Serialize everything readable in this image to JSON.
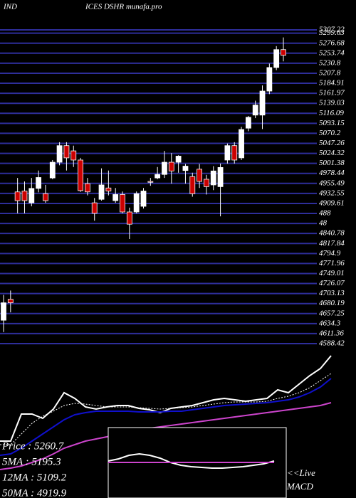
{
  "chart_data": {
    "type": "candlestick",
    "title_left": "IND",
    "title_right": "ICES DSHR munafa.pro",
    "up_color": "#ffffff",
    "down_color": "#cc0000",
    "grid": true,
    "grid_color": "#2e2e9a",
    "ylim": [
      4588.42,
      5307.22
    ],
    "yticks": [
      5307.22,
      5299.63,
      5276.68,
      5253.74,
      5230.8,
      {
        "value": 5207.8,
        "label": "5207.8"
      },
      5184.91,
      5161.97,
      5139.03,
      5116.09,
      5093.15,
      5070.2,
      5047.26,
      5024.32,
      5001.38,
      4978.44,
      4955.49,
      4932.55,
      4909.61,
      {
        "value": 4886.67,
        "label": "488"
      },
      {
        "value": 4863.73,
        "label": "48"
      },
      4840.78,
      4817.84,
      4794.9,
      4771.96,
      4749.01,
      4726.07,
      4703.13,
      4680.19,
      4657.25,
      4634.3,
      4611.36,
      4588.42
    ],
    "open": [
      4642,
      4690,
      4936,
      4938,
      4911,
      4944,
      4932,
      4968,
      5004,
      5042,
      5030,
      5009,
      4955,
      4911,
      4919,
      4945,
      4916,
      4930,
      4890,
      4890,
      4903,
      4960,
      4968,
      4976,
      5004,
      5004,
      4985,
      4971,
      4988,
      4965,
      4952,
      4948,
      5009,
      5042,
      5014,
      5082,
      5112,
      5112,
      5167,
      5221,
      5262
    ],
    "high": [
      4700,
      4710,
      4968,
      4960,
      4968,
      4985,
      4952,
      5009,
      5050,
      5050,
      5042,
      5014,
      4968,
      4922,
      4990,
      4985,
      4945,
      4937,
      4900,
      4937,
      4945,
      4968,
      4993,
      5030,
      5025,
      5020,
      5000,
      4980,
      5000,
      4975,
      4995,
      5001,
      5047,
      5050,
      5085,
      5110,
      5145,
      5180,
      5230,
      5270,
      5290
    ],
    "low": [
      4615,
      4660,
      4887,
      4887,
      4903,
      4935,
      4911,
      4965,
      4997,
      4985,
      4993,
      4936,
      4928,
      4870,
      4916,
      4928,
      4911,
      4887,
      4828,
      4887,
      4898,
      4950,
      4965,
      4968,
      4955,
      4980,
      4955,
      4925,
      4945,
      4930,
      4940,
      4880,
      5001,
      5001,
      5009,
      5075,
      5105,
      5080,
      5160,
      5215,
      5235
    ],
    "close": [
      4682,
      4682,
      4916,
      4916,
      4944,
      4969,
      4916,
      5004,
      5042,
      5014,
      5009,
      4939,
      4936,
      4887,
      4952,
      4938,
      4930,
      4890,
      4862,
      4932,
      4938,
      4958,
      4976,
      5004,
      4984,
      5018,
      4995,
      4932,
      4960,
      4948,
      4984,
      4992,
      5042,
      5009,
      5079,
      5107,
      5135,
      5167,
      5221,
      5262,
      5249
    ],
    "panel_series": [
      {
        "color": "#ffffff",
        "values": [
          80,
          80,
          118,
          118,
          112,
          125,
          148,
          140,
          128,
          125,
          128,
          130,
          130,
          126,
          124,
          120,
          126,
          128,
          130,
          134,
          138,
          140,
          138,
          136,
          138,
          140,
          152,
          148,
          160,
          172,
          182,
          200
        ]
      },
      {
        "color": "#ffffff",
        "dashed": true,
        "values": [
          75,
          75,
          90,
          105,
          115,
          122,
          130,
          133,
          132,
          130,
          128,
          128,
          128,
          127,
          126,
          125,
          126,
          127,
          128,
          130,
          132,
          134,
          135,
          135,
          135,
          136,
          140,
          143,
          148,
          155,
          165,
          175
        ]
      },
      {
        "color": "#1010cc",
        "values": [
          60,
          62,
          70,
          80,
          90,
          100,
          110,
          117,
          120,
          122,
          122,
          122,
          122,
          121,
          121,
          121,
          122,
          122,
          124,
          126,
          128,
          130,
          131,
          132,
          133,
          134,
          136,
          138,
          142,
          148,
          156,
          168
        ]
      },
      {
        "color": "#cc44cc",
        "values": [
          40,
          42,
          45,
          50,
          55,
          62,
          70,
          75,
          80,
          83,
          86,
          90,
          94,
          96,
          98,
          100,
          102,
          104,
          106,
          108,
          110,
          112,
          114,
          116,
          118,
          120,
          122,
          124,
          126,
          128,
          130,
          134
        ]
      }
    ],
    "macd_series": [
      {
        "color": "#ffffff",
        "values": [
          52,
          55,
          60,
          62,
          60,
          56,
          50,
          46,
          44,
          43,
          42,
          42,
          43,
          44,
          46,
          48,
          52
        ]
      },
      {
        "color": "#cc44cc",
        "values": [
          50,
          50,
          50,
          50,
          50,
          50,
          50,
          50,
          50,
          50,
          50,
          50,
          50,
          50,
          50,
          50,
          50
        ]
      }
    ],
    "info_texts": [
      "Price  : 5260.7",
      "5MA : 5195.3",
      "12MA : 5109.2",
      "50MA : 4919.9"
    ],
    "live_label": "<<Live",
    "macd_label": "MACD"
  }
}
